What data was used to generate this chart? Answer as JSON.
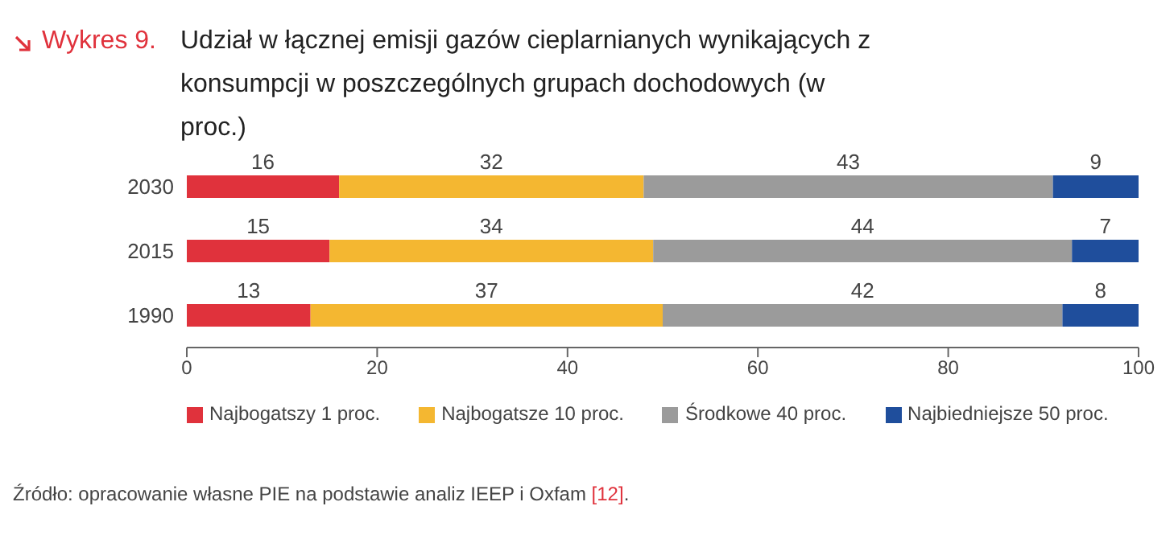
{
  "chart_data": {
    "type": "bar",
    "orientation": "horizontal",
    "stacked": true,
    "title": "Wykres 9.",
    "subtitle": "Udział w łącznej emisji gazów cieplarnianych wynikających z konsumpcji w poszczególnych grupach dochodowych (w proc.)",
    "categories": [
      "2030",
      "2015",
      "1990"
    ],
    "series": [
      {
        "name": "Najbogatszy 1 proc.",
        "color": "#e0323c",
        "values": [
          16,
          15,
          13
        ]
      },
      {
        "name": "Najbogatsze 10 proc.",
        "color": "#f4b731",
        "values": [
          32,
          34,
          37
        ]
      },
      {
        "name": "Środkowe 40 proc.",
        "color": "#9b9b9b",
        "values": [
          43,
          44,
          42
        ]
      },
      {
        "name": "Najbiedniejsze 50 proc.",
        "color": "#1f4e9c",
        "values": [
          9,
          7,
          8
        ]
      }
    ],
    "xlim": [
      0,
      100
    ],
    "xticks": [
      0,
      20,
      40,
      60,
      80,
      100
    ],
    "data_labels": true,
    "legend": "bottom",
    "annotations": [
      "Źródło: opracowanie własne PIE na podstawie analiz IEEP i Oxfam [12]."
    ]
  }
}
